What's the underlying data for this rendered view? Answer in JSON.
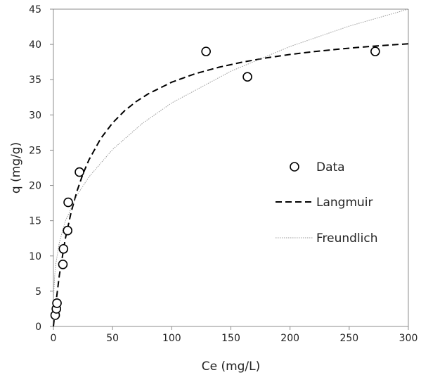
{
  "chart_data": {
    "type": "scatter",
    "title": "",
    "xlabel": "Ce (mg/L)",
    "ylabel": "q (mg/g)",
    "xlim": [
      0,
      300
    ],
    "ylim": [
      0,
      45
    ],
    "x_ticks": [
      0,
      50,
      100,
      150,
      200,
      250,
      300
    ],
    "y_ticks": [
      0,
      5,
      10,
      15,
      20,
      25,
      30,
      35,
      40,
      45
    ],
    "grid": false,
    "legend_position": "right",
    "series": [
      {
        "name": "Data",
        "kind": "markers",
        "marker": "open-circle",
        "x": [
          1.5,
          2.5,
          3.0,
          8.0,
          8.5,
          12.0,
          12.5,
          22.0,
          129.0,
          164.0,
          272.0
        ],
        "y": [
          1.6,
          2.5,
          3.3,
          8.8,
          11.0,
          13.6,
          17.6,
          21.9,
          39.0,
          35.4,
          39.0
        ]
      },
      {
        "name": "Langmuir",
        "kind": "line",
        "style": "dashed",
        "model": {
          "qmax": 43.3,
          "KL": 0.04
        },
        "x": [
          0,
          2,
          5,
          10,
          15,
          20,
          25,
          30,
          40,
          50,
          60,
          70,
          80,
          100,
          120,
          140,
          160,
          180,
          200,
          220,
          240,
          260,
          280,
          300
        ],
        "y": [
          0,
          3.21,
          7.22,
          12.37,
          16.24,
          19.24,
          21.65,
          23.62,
          26.65,
          28.87,
          30.56,
          31.9,
          32.98,
          34.64,
          35.85,
          36.77,
          37.5,
          38.09,
          38.57,
          38.97,
          39.31,
          39.61,
          39.86,
          40.09
        ]
      },
      {
        "name": "Freundlich",
        "kind": "line",
        "style": "dotted",
        "model": {
          "KF": 7.07,
          "n": 3.08
        },
        "x": [
          0.2,
          1,
          2,
          5,
          10,
          20,
          30,
          50,
          75,
          100,
          150,
          200,
          250,
          300
        ],
        "y": [
          4.1,
          7.07,
          8.85,
          11.9,
          14.9,
          18.64,
          21.2,
          25.1,
          28.78,
          31.7,
          36.2,
          39.7,
          42.6,
          45.3
        ]
      }
    ]
  },
  "colors": {
    "axis": "#8c8c8c",
    "text": "#222222",
    "series": "#000000",
    "dotted": "#9a9a9a"
  }
}
